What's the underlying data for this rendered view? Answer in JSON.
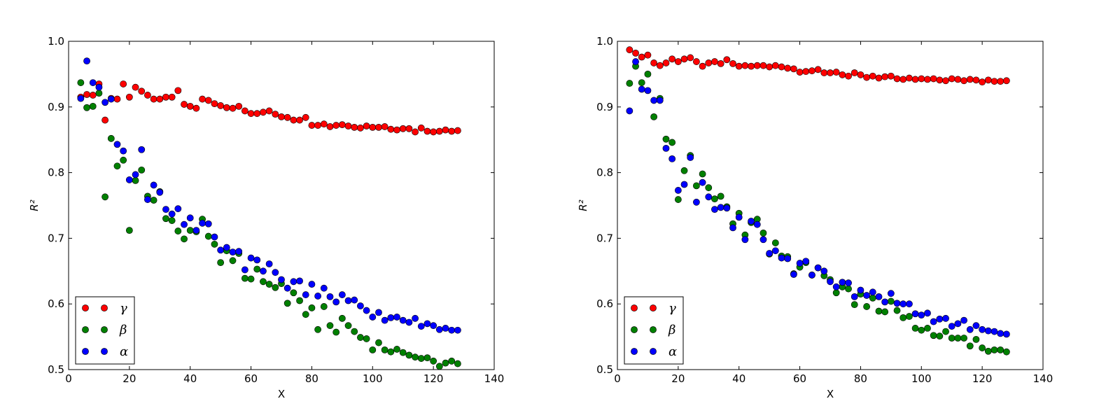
{
  "colors": {
    "gamma": "#ff0000",
    "beta": "#008000",
    "alpha": "#0000ff"
  },
  "chart_data": [
    {
      "type": "scatter",
      "xlabel": "X",
      "ylabel": "R²",
      "xlim": [
        0,
        140
      ],
      "ylim": [
        0.5,
        1.0
      ],
      "xticks": [
        "0",
        "20",
        "40",
        "60",
        "80",
        "100",
        "120",
        "140"
      ],
      "yticks": [
        "0.5",
        "0.6",
        "0.7",
        "0.8",
        "0.9",
        "1.0"
      ],
      "legend_position": "bottom-left",
      "x": [
        4,
        6,
        8,
        10,
        12,
        14,
        16,
        18,
        20,
        22,
        24,
        26,
        28,
        30,
        32,
        34,
        36,
        38,
        40,
        42,
        44,
        46,
        48,
        50,
        52,
        54,
        56,
        58,
        60,
        62,
        64,
        66,
        68,
        70,
        72,
        74,
        76,
        78,
        80,
        82,
        84,
        86,
        88,
        90,
        92,
        94,
        96,
        98,
        100,
        102,
        104,
        106,
        108,
        110,
        112,
        114,
        116,
        118,
        120,
        122,
        124,
        126,
        128
      ],
      "series": [
        {
          "name": "γ",
          "color": "#ff0000",
          "values": [
            0.915,
            0.919,
            0.918,
            0.935,
            0.88,
            0.913,
            0.912,
            0.935,
            0.915,
            0.93,
            0.924,
            0.918,
            0.912,
            0.912,
            0.915,
            0.915,
            0.925,
            0.904,
            0.901,
            0.898,
            0.912,
            0.91,
            0.905,
            0.902,
            0.899,
            0.898,
            0.901,
            0.894,
            0.89,
            0.89,
            0.892,
            0.894,
            0.889,
            0.885,
            0.884,
            0.88,
            0.88,
            0.884,
            0.872,
            0.872,
            0.874,
            0.87,
            0.872,
            0.873,
            0.871,
            0.869,
            0.868,
            0.871,
            0.869,
            0.869,
            0.87,
            0.866,
            0.865,
            0.867,
            0.867,
            0.862,
            0.868,
            0.863,
            0.862,
            0.863,
            0.865,
            0.863,
            0.864
          ]
        },
        {
          "name": "β",
          "color": "#008000",
          "values": [
            0.937,
            0.899,
            0.901,
            0.921,
            0.763,
            0.852,
            0.81,
            0.819,
            0.712,
            0.788,
            0.804,
            0.764,
            0.758,
            0.771,
            0.73,
            0.727,
            0.711,
            0.699,
            0.712,
            0.71,
            0.729,
            0.703,
            0.691,
            0.663,
            0.681,
            0.666,
            0.677,
            0.639,
            0.638,
            0.653,
            0.634,
            0.63,
            0.625,
            0.631,
            0.601,
            0.617,
            0.605,
            0.584,
            0.594,
            0.561,
            0.596,
            0.567,
            0.557,
            0.578,
            0.567,
            0.558,
            0.549,
            0.547,
            0.53,
            0.541,
            0.53,
            0.527,
            0.531,
            0.526,
            0.522,
            0.519,
            0.517,
            0.518,
            0.513,
            0.505,
            0.51,
            0.513,
            0.509
          ]
        },
        {
          "name": "α",
          "color": "#0000ff",
          "values": [
            0.913,
            0.97,
            0.937,
            0.93,
            0.907,
            0.912,
            0.843,
            0.833,
            0.789,
            0.797,
            0.835,
            0.759,
            0.781,
            0.77,
            0.744,
            0.737,
            0.745,
            0.721,
            0.731,
            0.712,
            0.723,
            0.722,
            0.702,
            0.682,
            0.686,
            0.679,
            0.68,
            0.652,
            0.67,
            0.667,
            0.65,
            0.661,
            0.648,
            0.637,
            0.624,
            0.634,
            0.635,
            0.614,
            0.63,
            0.612,
            0.624,
            0.611,
            0.603,
            0.614,
            0.605,
            0.606,
            0.597,
            0.59,
            0.58,
            0.587,
            0.575,
            0.579,
            0.58,
            0.575,
            0.572,
            0.578,
            0.566,
            0.57,
            0.567,
            0.561,
            0.563,
            0.56,
            0.56
          ]
        }
      ]
    },
    {
      "type": "scatter",
      "xlabel": "X",
      "ylabel": "R²",
      "xlim": [
        0,
        140
      ],
      "ylim": [
        0.5,
        1.0
      ],
      "xticks": [
        "0",
        "20",
        "40",
        "60",
        "80",
        "100",
        "120",
        "140"
      ],
      "yticks": [
        "0.5",
        "0.6",
        "0.7",
        "0.8",
        "0.9",
        "1.0"
      ],
      "legend_position": "bottom-left",
      "x": [
        4,
        6,
        8,
        10,
        12,
        14,
        16,
        18,
        20,
        22,
        24,
        26,
        28,
        30,
        32,
        34,
        36,
        38,
        40,
        42,
        44,
        46,
        48,
        50,
        52,
        54,
        56,
        58,
        60,
        62,
        64,
        66,
        68,
        70,
        72,
        74,
        76,
        78,
        80,
        82,
        84,
        86,
        88,
        90,
        92,
        94,
        96,
        98,
        100,
        102,
        104,
        106,
        108,
        110,
        112,
        114,
        116,
        118,
        120,
        122,
        124,
        126,
        128
      ],
      "series": [
        {
          "name": "γ",
          "color": "#ff0000",
          "values": [
            0.987,
            0.982,
            0.976,
            0.979,
            0.967,
            0.963,
            0.967,
            0.973,
            0.969,
            0.973,
            0.975,
            0.969,
            0.962,
            0.967,
            0.969,
            0.966,
            0.972,
            0.966,
            0.962,
            0.963,
            0.962,
            0.963,
            0.963,
            0.961,
            0.963,
            0.961,
            0.959,
            0.958,
            0.953,
            0.954,
            0.955,
            0.957,
            0.952,
            0.952,
            0.953,
            0.949,
            0.947,
            0.952,
            0.949,
            0.945,
            0.947,
            0.944,
            0.946,
            0.947,
            0.943,
            0.942,
            0.944,
            0.942,
            0.943,
            0.942,
            0.943,
            0.941,
            0.94,
            0.943,
            0.942,
            0.94,
            0.942,
            0.941,
            0.938,
            0.941,
            0.939,
            0.939,
            0.94
          ]
        },
        {
          "name": "β",
          "color": "#008000",
          "values": [
            0.936,
            0.962,
            0.937,
            0.95,
            0.885,
            0.913,
            0.851,
            0.846,
            0.759,
            0.803,
            0.826,
            0.78,
            0.798,
            0.777,
            0.76,
            0.764,
            0.748,
            0.722,
            0.738,
            0.705,
            0.724,
            0.729,
            0.708,
            0.676,
            0.693,
            0.673,
            0.672,
            0.646,
            0.656,
            0.663,
            0.644,
            0.655,
            0.643,
            0.637,
            0.617,
            0.626,
            0.623,
            0.599,
            0.615,
            0.596,
            0.609,
            0.589,
            0.588,
            0.604,
            0.59,
            0.579,
            0.581,
            0.563,
            0.56,
            0.563,
            0.552,
            0.551,
            0.558,
            0.548,
            0.548,
            0.548,
            0.536,
            0.546,
            0.533,
            0.528,
            0.53,
            0.53,
            0.527
          ]
        },
        {
          "name": "α",
          "color": "#0000ff",
          "values": [
            0.894,
            0.969,
            0.927,
            0.925,
            0.91,
            0.91,
            0.837,
            0.821,
            0.773,
            0.782,
            0.823,
            0.755,
            0.785,
            0.763,
            0.744,
            0.747,
            0.746,
            0.716,
            0.732,
            0.698,
            0.726,
            0.721,
            0.698,
            0.677,
            0.681,
            0.67,
            0.669,
            0.645,
            0.662,
            0.665,
            0.644,
            0.655,
            0.65,
            0.634,
            0.626,
            0.633,
            0.632,
            0.611,
            0.621,
            0.613,
            0.618,
            0.611,
            0.603,
            0.616,
            0.601,
            0.6,
            0.6,
            0.585,
            0.583,
            0.586,
            0.573,
            0.577,
            0.578,
            0.566,
            0.57,
            0.575,
            0.561,
            0.567,
            0.561,
            0.559,
            0.558,
            0.555,
            0.554
          ]
        }
      ]
    }
  ]
}
